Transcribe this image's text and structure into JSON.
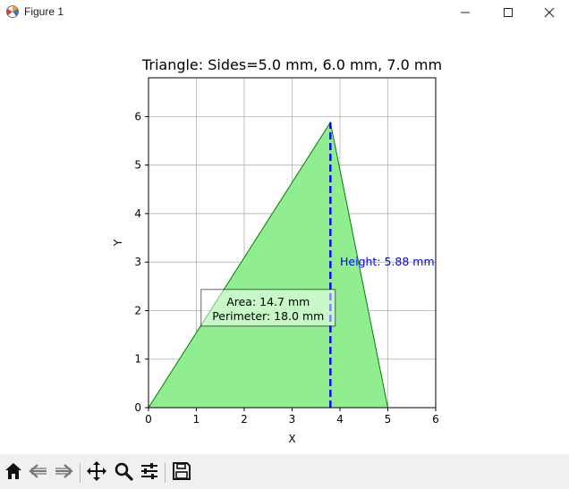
{
  "window": {
    "title": "Figure 1",
    "icons": {
      "app": "matplotlib-icon",
      "minimize": "minimize-icon",
      "maximize": "maximize-icon",
      "close": "close-icon"
    }
  },
  "toolbar": {
    "buttons": [
      "home-icon",
      "back-arrow-icon",
      "forward-arrow-icon",
      "pan-icon",
      "zoom-icon",
      "configure-subplots-icon",
      "save-icon"
    ]
  },
  "chart_data": {
    "type": "area",
    "title": "Triangle: Sides=5.0 mm, 6.0 mm, 7.0 mm",
    "xlabel": "X",
    "ylabel": "Y",
    "xlim": [
      0,
      6
    ],
    "ylim": [
      0,
      6.8
    ],
    "xticks": [
      0,
      1,
      2,
      3,
      4,
      5,
      6
    ],
    "yticks": [
      0,
      1,
      2,
      3,
      4,
      5,
      6
    ],
    "grid": true,
    "triangle": {
      "vertices": [
        [
          0,
          0
        ],
        [
          5,
          0
        ],
        [
          3.8,
          5.88
        ]
      ],
      "fill": "#90ee90",
      "edge": "#008000"
    },
    "height_line": {
      "x": 3.8,
      "y0": 0,
      "y1": 5.88,
      "color": "#0000ff"
    },
    "annotations": {
      "height": "Height: 5.88 mm",
      "area": "Area: 14.7 mm",
      "perimeter": "Perimeter: 18.0 mm"
    },
    "annotation_positions": {
      "height": [
        4.0,
        3.0
      ],
      "box": [
        2.5,
        2.05
      ]
    }
  }
}
